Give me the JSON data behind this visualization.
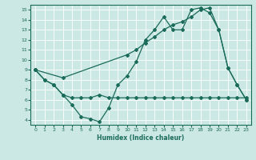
{
  "xlabel": "Humidex (Indice chaleur)",
  "background_color": "#cce8e4",
  "grid_color": "#ffffff",
  "line_color": "#1a6b5a",
  "xlim": [
    -0.5,
    23.5
  ],
  "ylim": [
    3.5,
    15.5
  ],
  "xticks": [
    0,
    1,
    2,
    3,
    4,
    5,
    6,
    7,
    8,
    9,
    10,
    11,
    12,
    13,
    14,
    15,
    16,
    17,
    18,
    19,
    20,
    21,
    22,
    23
  ],
  "yticks": [
    4,
    5,
    6,
    7,
    8,
    9,
    10,
    11,
    12,
    13,
    14,
    15
  ],
  "series": [
    {
      "x": [
        0,
        1,
        2,
        3,
        4,
        5,
        6,
        7,
        8,
        9,
        10,
        11,
        12,
        13,
        14,
        15,
        16,
        17,
        18,
        19,
        20,
        21,
        22,
        23
      ],
      "y": [
        9,
        8,
        7.5,
        6.5,
        5.5,
        4.3,
        4.1,
        3.8,
        5.2,
        7.5,
        8.4,
        9.8,
        12.0,
        13.0,
        14.3,
        13.0,
        13.0,
        15.0,
        15.2,
        14.7,
        13.0,
        9.2,
        7.5,
        6.0
      ]
    },
    {
      "x": [
        0,
        3,
        10,
        11,
        12,
        13,
        14,
        15,
        16,
        17,
        18,
        19,
        20,
        21,
        22,
        23
      ],
      "y": [
        9,
        8.2,
        10.5,
        11.0,
        11.7,
        12.3,
        13.0,
        13.5,
        13.8,
        14.3,
        15.0,
        15.2,
        13.0,
        9.2,
        7.5,
        6.0
      ]
    },
    {
      "x": [
        0,
        1,
        2,
        3,
        4,
        5,
        6,
        7,
        8,
        9,
        10,
        11,
        12,
        13,
        14,
        15,
        16,
        17,
        18,
        19,
        20,
        21,
        22,
        23
      ],
      "y": [
        9,
        8,
        7.5,
        6.5,
        6.2,
        6.2,
        6.2,
        6.5,
        6.2,
        6.2,
        6.2,
        6.2,
        6.2,
        6.2,
        6.2,
        6.2,
        6.2,
        6.2,
        6.2,
        6.2,
        6.2,
        6.2,
        6.2,
        6.2
      ]
    }
  ]
}
